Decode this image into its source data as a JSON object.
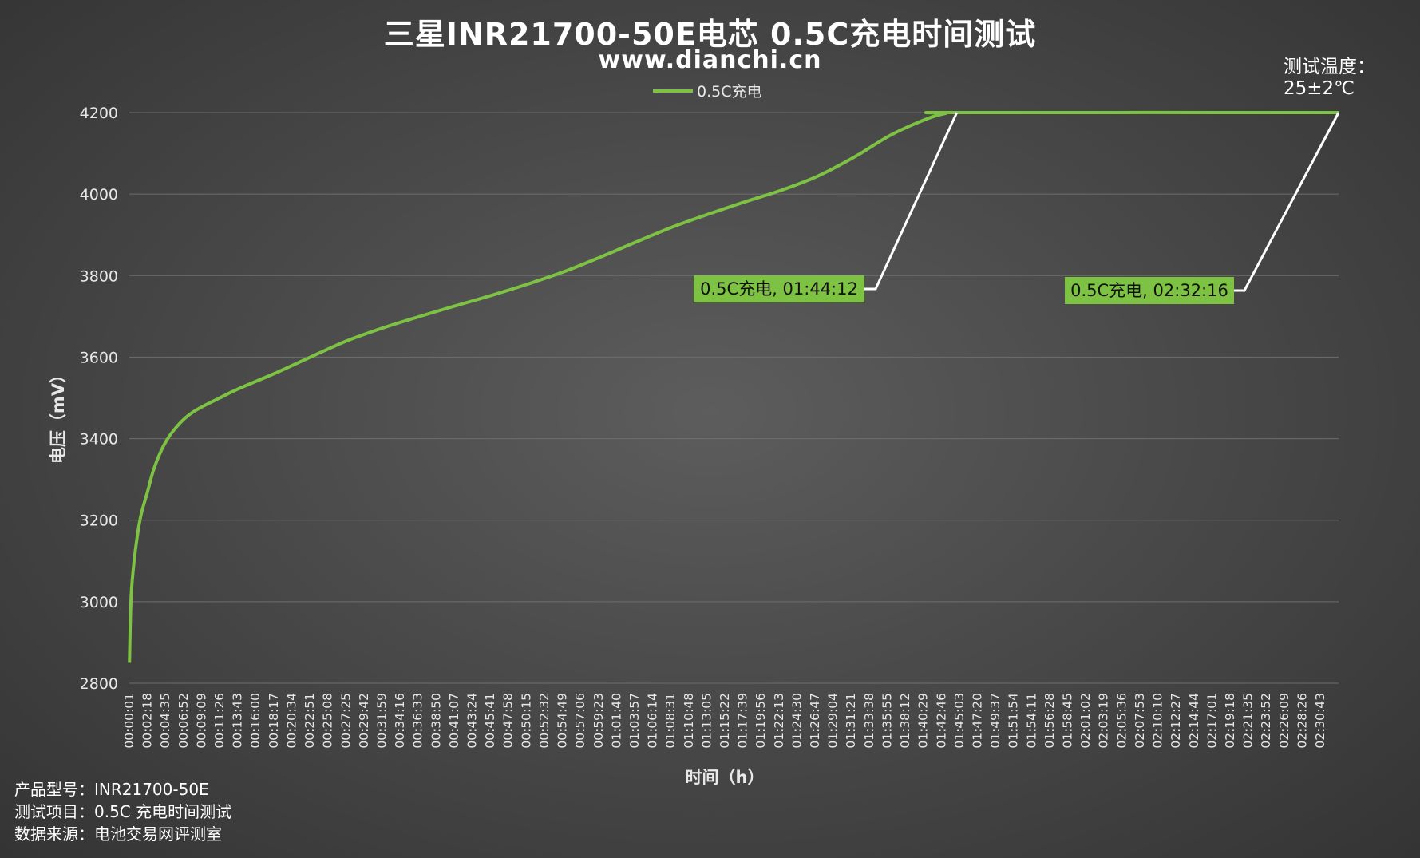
{
  "title": "三星INR21700-50E电芯 0.5C充电时间测试",
  "subtitle": "www.dianchi.cn",
  "temperature": {
    "label": "测试温度：",
    "value": "25±2℃"
  },
  "footer": [
    "产品型号：INR21700-50E",
    "测试项目：0.5C 充电时间测试",
    "数据来源：电池交易网评测室"
  ],
  "colors": {
    "series": "#7dc242",
    "grid": "#6e6e6e",
    "leader": "#ffffff",
    "callout_bg": "#7dc242"
  },
  "chart_data": {
    "type": "line",
    "xlabel": "时间（h）",
    "ylabel": "电压（mV）",
    "ylim": [
      2800,
      4200
    ],
    "yticks": [
      2800,
      3000,
      3200,
      3400,
      3600,
      3800,
      4000,
      4200
    ],
    "grid": true,
    "legend": "top-center",
    "x_tick_labels": [
      "00:00:01",
      "00:02:18",
      "00:04:35",
      "00:06:52",
      "00:09:09",
      "00:11:26",
      "00:13:43",
      "00:16:00",
      "00:18:17",
      "00:20:34",
      "00:22:51",
      "00:25:08",
      "00:27:25",
      "00:29:42",
      "00:31:59",
      "00:34:16",
      "00:36:33",
      "00:38:50",
      "00:41:07",
      "00:43:24",
      "00:45:41",
      "00:47:58",
      "00:50:15",
      "00:52:32",
      "00:54:49",
      "00:57:06",
      "00:59:23",
      "01:01:40",
      "01:03:57",
      "01:06:14",
      "01:08:31",
      "01:10:48",
      "01:13:05",
      "01:15:22",
      "01:17:39",
      "01:19:56",
      "01:22:13",
      "01:24:30",
      "01:26:47",
      "01:29:04",
      "01:31:21",
      "01:33:38",
      "01:35:55",
      "01:38:12",
      "01:40:29",
      "01:42:46",
      "01:45:03",
      "01:47:20",
      "01:49:37",
      "01:51:54",
      "01:54:11",
      "01:56:28",
      "01:58:45",
      "02:01:02",
      "02:03:19",
      "02:05:36",
      "02:07:53",
      "02:10:10",
      "02:12:27",
      "02:14:44",
      "02:17:01",
      "02:19:18",
      "02:21:35",
      "02:23:52",
      "02:26:09",
      "02:28:26",
      "02:30:43"
    ],
    "series": [
      {
        "name": "0.5C充电",
        "time_min": [
          0.02,
          0.2,
          0.5,
          1,
          1.5,
          2.3,
          3,
          4,
          5,
          6,
          7,
          8,
          9.15,
          11.4,
          13.7,
          18.3,
          22.8,
          27.4,
          32,
          36.6,
          41.1,
          45.7,
          50.3,
          54.8,
          59.4,
          64,
          68.5,
          73.1,
          77.7,
          82.2,
          86.8,
          91.4,
          95.9,
          100.5,
          102.8,
          104.2,
          152.27
        ],
        "voltage_mv": [
          2850,
          3000,
          3080,
          3160,
          3215,
          3270,
          3320,
          3370,
          3405,
          3430,
          3450,
          3465,
          3478,
          3500,
          3522,
          3560,
          3600,
          3640,
          3672,
          3700,
          3726,
          3752,
          3780,
          3810,
          3846,
          3884,
          3920,
          3952,
          3982,
          4010,
          4045,
          4092,
          4145,
          4185,
          4198,
          4200,
          4200
        ]
      }
    ],
    "annotations": [
      {
        "text": "0.5C充电, 01:44:12",
        "time_min": 104.2,
        "voltage_mv": 4200
      },
      {
        "text": "0.5C充电, 02:32:16",
        "time_min": 152.27,
        "voltage_mv": 4200
      }
    ]
  }
}
